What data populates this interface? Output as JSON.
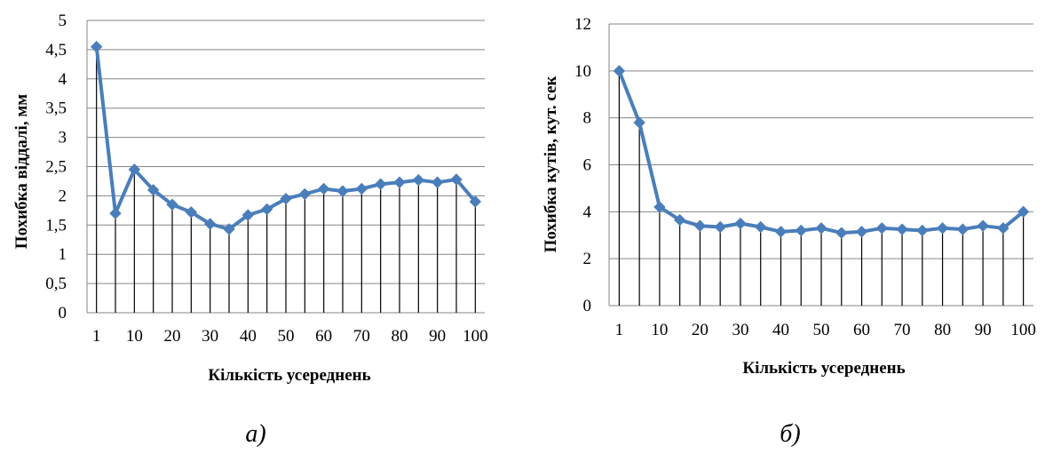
{
  "colors": {
    "series": "#4A7EBB",
    "grid": "#868686",
    "drop": "#000000"
  },
  "chart_data": [
    {
      "type": "line",
      "panel_label": "а)",
      "xlabel": "Кількість усереднень",
      "ylabel": "Похибка віддалі, мм",
      "ylim": [
        0,
        5
      ],
      "yticks": [
        "0",
        "0,5",
        "1",
        "1,5",
        "2",
        "2,5",
        "3",
        "3,5",
        "4",
        "4,5",
        "5"
      ],
      "x": [
        "1",
        "5",
        "10",
        "15",
        "20",
        "25",
        "30",
        "35",
        "40",
        "45",
        "50",
        "55",
        "60",
        "65",
        "70",
        "75",
        "80",
        "85",
        "90",
        "95",
        "100"
      ],
      "xtick_labels": [
        "1",
        "10",
        "20",
        "30",
        "40",
        "50",
        "60",
        "70",
        "80",
        "90",
        "100"
      ],
      "values": [
        4.55,
        1.7,
        2.45,
        2.1,
        1.85,
        1.72,
        1.52,
        1.43,
        1.67,
        1.77,
        1.95,
        2.03,
        2.12,
        2.08,
        2.12,
        2.2,
        2.23,
        2.27,
        2.23,
        2.28,
        1.9
      ],
      "grid": true,
      "drop_lines": true
    },
    {
      "type": "line",
      "panel_label": "б)",
      "xlabel": "Кількість усереднень",
      "ylabel": "Похибка кутів, кут. сек",
      "ylim": [
        0,
        12
      ],
      "yticks": [
        "0",
        "2",
        "4",
        "6",
        "8",
        "10",
        "12"
      ],
      "x": [
        "1",
        "5",
        "10",
        "15",
        "20",
        "25",
        "30",
        "35",
        "40",
        "45",
        "50",
        "55",
        "60",
        "65",
        "70",
        "75",
        "80",
        "85",
        "90",
        "95",
        "100"
      ],
      "xtick_labels": [
        "1",
        "10",
        "20",
        "30",
        "40",
        "50",
        "60",
        "70",
        "80",
        "90",
        "100"
      ],
      "values": [
        10.0,
        7.8,
        4.2,
        3.65,
        3.4,
        3.35,
        3.5,
        3.35,
        3.15,
        3.2,
        3.3,
        3.1,
        3.15,
        3.3,
        3.25,
        3.2,
        3.3,
        3.25,
        3.4,
        3.3,
        4.0
      ],
      "grid": true,
      "drop_lines": true
    }
  ]
}
